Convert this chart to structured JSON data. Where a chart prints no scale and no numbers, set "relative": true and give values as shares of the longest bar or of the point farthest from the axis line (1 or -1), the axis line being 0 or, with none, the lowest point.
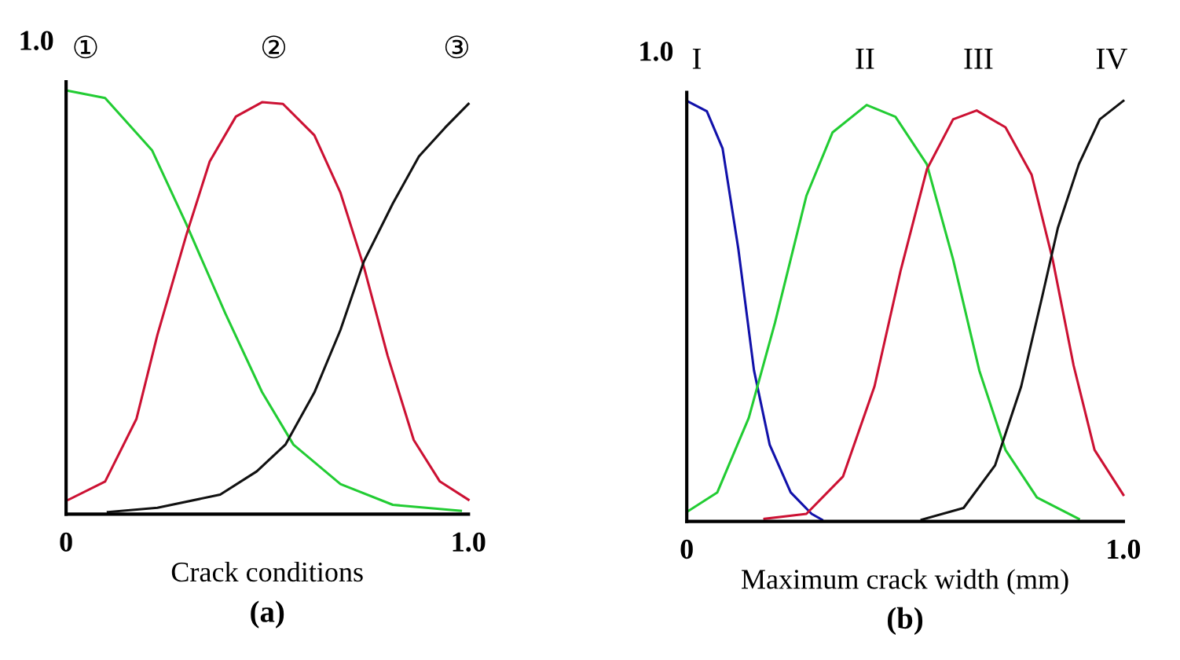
{
  "chart_data": [
    {
      "type": "line",
      "relative": true,
      "xlabel": "Crack conditions",
      "title": "(a)",
      "annotations": [
        "1.0"
      ],
      "xlim": [
        0,
        1.0
      ],
      "xticks": [
        0,
        {
          "value": 1.0,
          "label": "1.0"
        }
      ],
      "grid": false,
      "legend": false,
      "marker": "none",
      "line_style": "solid",
      "series": [
        {
          "name": "①",
          "color": "#22cc33",
          "x": [
            0,
            0.097,
            0.214,
            0.299,
            0.396,
            0.487,
            0.565,
            0.682,
            0.812,
            0.981
          ],
          "values": [
            1,
            0.982,
            0.858,
            0.684,
            0.473,
            0.288,
            0.164,
            0.071,
            0.022,
            0.008
          ]
        },
        {
          "name": "②",
          "color": "#cc1133",
          "x": [
            0.006,
            0.097,
            0.175,
            0.227,
            0.299,
            0.357,
            0.422,
            0.487,
            0.539,
            0.617,
            0.682,
            0.74,
            0.799,
            0.864,
            0.929,
            1.0
          ],
          "values": [
            0.034,
            0.077,
            0.225,
            0.423,
            0.659,
            0.832,
            0.938,
            0.972,
            0.968,
            0.894,
            0.758,
            0.584,
            0.374,
            0.175,
            0.077,
            0.034
          ]
        },
        {
          "name": "③",
          "color": "#111111",
          "x": [
            0.104,
            0.227,
            0.383,
            0.474,
            0.545,
            0.617,
            0.682,
            0.74,
            0.812,
            0.877,
            0.942,
            1.0
          ],
          "values": [
            0.005,
            0.015,
            0.046,
            0.101,
            0.164,
            0.287,
            0.435,
            0.596,
            0.733,
            0.844,
            0.912,
            0.968
          ]
        }
      ]
    },
    {
      "type": "line",
      "relative": true,
      "xlabel": "Maximum crack width (mm)",
      "title": "(b)",
      "annotations": [
        "1.0"
      ],
      "xlim": [
        0,
        1.0
      ],
      "xticks": [
        0,
        {
          "value": 1.0,
          "label": "1.0"
        }
      ],
      "grid": false,
      "legend": false,
      "marker": "none",
      "line_style": "solid",
      "series": [
        {
          "name": "I",
          "color": "#1111aa",
          "x": [
            0,
            0.046,
            0.082,
            0.118,
            0.154,
            0.19,
            0.238,
            0.286,
            0.31
          ],
          "values": [
            1,
            0.975,
            0.887,
            0.649,
            0.359,
            0.182,
            0.069,
            0.018,
            0.004
          ]
        },
        {
          "name": "II",
          "color": "#22cc33",
          "x": [
            0.004,
            0.07,
            0.142,
            0.202,
            0.274,
            0.334,
            0.412,
            0.478,
            0.55,
            0.61,
            0.67,
            0.73,
            0.802,
            0.898
          ],
          "values": [
            0.025,
            0.069,
            0.246,
            0.472,
            0.774,
            0.925,
            0.99,
            0.962,
            0.849,
            0.623,
            0.359,
            0.17,
            0.057,
            0.006
          ]
        },
        {
          "name": "III",
          "color": "#cc1133",
          "x": [
            0.178,
            0.274,
            0.358,
            0.43,
            0.49,
            0.55,
            0.61,
            0.664,
            0.73,
            0.79,
            0.838,
            0.886,
            0.934,
            1.0
          ],
          "values": [
            0.006,
            0.018,
            0.107,
            0.321,
            0.597,
            0.837,
            0.956,
            0.977,
            0.937,
            0.824,
            0.623,
            0.371,
            0.17,
            0.063
          ]
        },
        {
          "name": "IV",
          "color": "#111111",
          "x": [
            0.538,
            0.634,
            0.706,
            0.766,
            0.814,
            0.85,
            0.898,
            0.946,
            1.0
          ],
          "values": [
            0.004,
            0.032,
            0.133,
            0.321,
            0.534,
            0.698,
            0.849,
            0.956,
            1
          ]
        }
      ]
    }
  ]
}
